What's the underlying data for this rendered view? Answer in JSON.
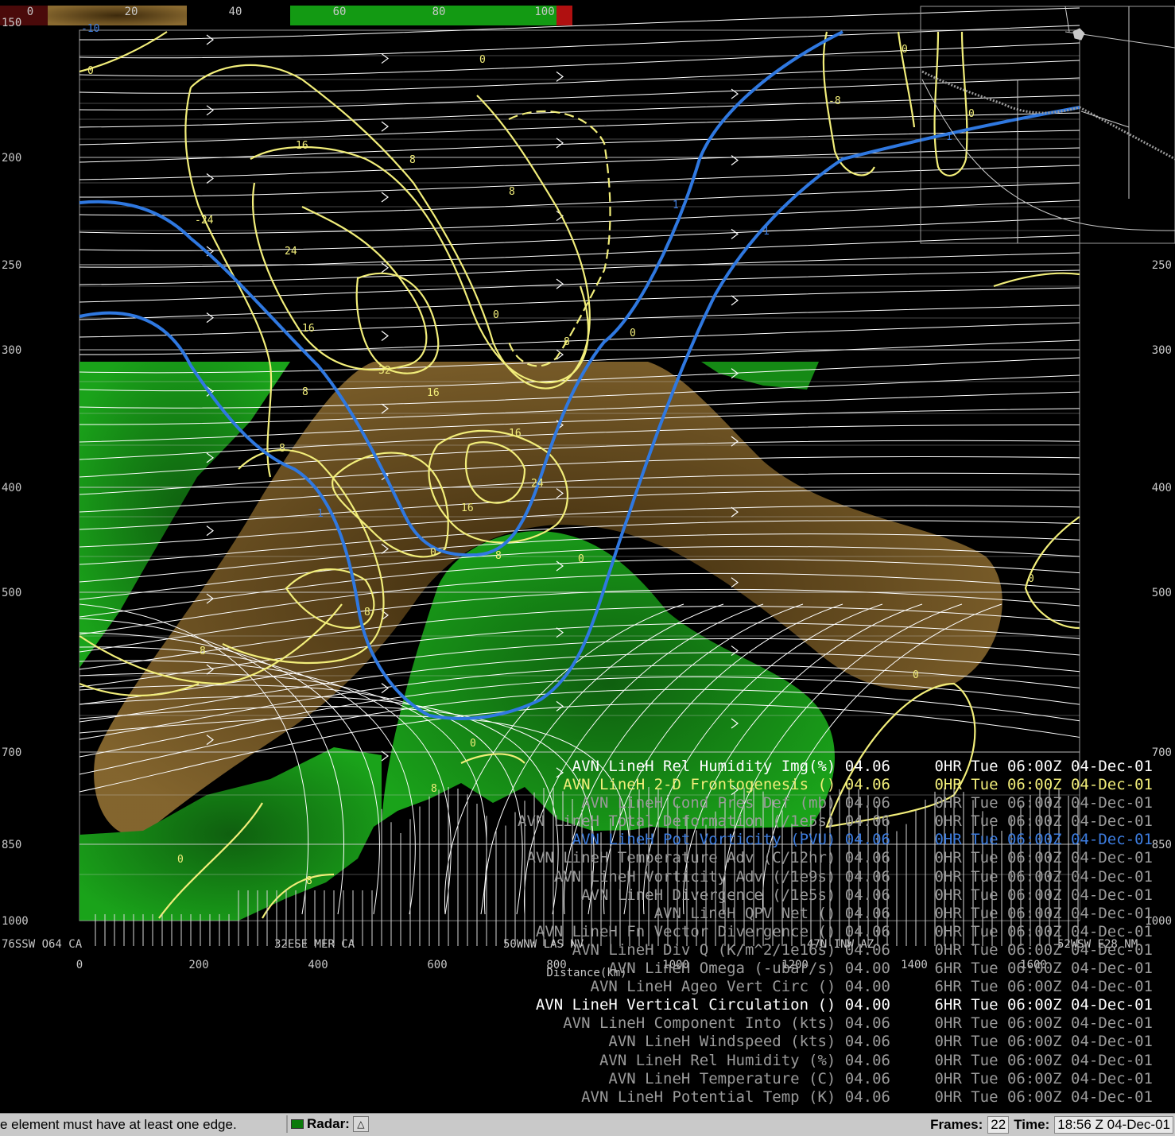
{
  "colorbar": {
    "ticks": [
      "0",
      "20",
      "40",
      "60",
      "80",
      "100"
    ]
  },
  "pressure_axis": {
    "left": [
      "150",
      "200",
      "250",
      "300",
      "400",
      "500",
      "700",
      "850",
      "1000"
    ],
    "right": [
      "250",
      "300",
      "400",
      "500",
      "700",
      "850",
      "1000"
    ]
  },
  "distance_axis": {
    "ticks": [
      "0",
      "200",
      "400",
      "600",
      "800",
      "1000",
      "1200",
      "1400",
      "1600"
    ],
    "label": "Distance(km)"
  },
  "locations": [
    "76SSW O64 CA",
    "32ESE MER CA",
    "50WNW LAS NV",
    "47N INW AZ",
    "52WSW E28 NM"
  ],
  "contour_labels": {
    "yellow": [
      "0",
      "16",
      "8",
      "24",
      "32",
      "16",
      "-24",
      "8",
      "8",
      "16",
      "24",
      "16",
      "8",
      "0",
      "0",
      "8",
      "8",
      "0",
      "0",
      "8",
      "-8",
      "0",
      "0",
      "0",
      "0",
      "0",
      "16",
      "8",
      "0",
      "8",
      "8",
      "0"
    ],
    "blue": [
      "-10",
      "1",
      "1",
      "1",
      "1"
    ]
  },
  "legend": [
    {
      "name": "AVN LineH Rel Humidity Img(%) 04.06",
      "time": "0HR Tue 06:00Z 04-Dec-01",
      "color": "#ffffff"
    },
    {
      "name": "AVN LineH 2-D Frontogenesis () 04.06",
      "time": "0HR Tue 06:00Z 04-Dec-01",
      "color": "#f2ee7a"
    },
    {
      "name": "AVN LineH Cond Pres Def (mb) 04.06",
      "time": "0HR Tue 06:00Z 04-Dec-01",
      "color": "#9a9a9a"
    },
    {
      "name": "AVN LineH Total Deformation (/1e5s) 04.06",
      "time": "0HR Tue 06:00Z 04-Dec-01",
      "color": "#9a9a9a"
    },
    {
      "name": "AVN LineH Pot Vorticity (PVU) 04.06",
      "time": "0HR Tue 06:00Z 04-Dec-01",
      "color": "#3d7de0"
    },
    {
      "name": "AVN LineH Temperature Adv (C/12hr) 04.06",
      "time": "0HR Tue 06:00Z 04-Dec-01",
      "color": "#9a9a9a"
    },
    {
      "name": "AVN LineH Vorticity Adv (/1e9s) 04.06",
      "time": "0HR Tue 06:00Z 04-Dec-01",
      "color": "#9a9a9a"
    },
    {
      "name": "AVN LineH Divergence (/1e5s) 04.06",
      "time": "0HR Tue 06:00Z 04-Dec-01",
      "color": "#9a9a9a"
    },
    {
      "name": "AVN LineH QPV Net () 04.06",
      "time": "0HR Tue 06:00Z 04-Dec-01",
      "color": "#9a9a9a"
    },
    {
      "name": "AVN LineH Fn Vector Divergence () 04.06",
      "time": "0HR Tue 06:00Z 04-Dec-01",
      "color": "#9a9a9a"
    },
    {
      "name": "AVN LineH Div Q (K/m^2/1e16s) 04.06",
      "time": "0HR Tue 06:00Z 04-Dec-01",
      "color": "#9a9a9a"
    },
    {
      "name": "AVN LineH Omega (-ubar/s) 04.00",
      "time": "6HR Tue 06:00Z 04-Dec-01",
      "color": "#9a9a9a"
    },
    {
      "name": "AVN LineH Ageo Vert Circ () 04.00",
      "time": "6HR Tue 06:00Z 04-Dec-01",
      "color": "#9a9a9a"
    },
    {
      "name": "AVN LineH Vertical Circulation () 04.00",
      "time": "6HR Tue 06:00Z 04-Dec-01",
      "color": "#ffffff"
    },
    {
      "name": "AVN LineH Component Into (kts) 04.06",
      "time": "0HR Tue 06:00Z 04-Dec-01",
      "color": "#9a9a9a"
    },
    {
      "name": "AVN LineH Windspeed (kts) 04.06",
      "time": "0HR Tue 06:00Z 04-Dec-01",
      "color": "#9a9a9a"
    },
    {
      "name": "AVN LineH Rel Humidity (%) 04.06",
      "time": "0HR Tue 06:00Z 04-Dec-01",
      "color": "#9a9a9a"
    },
    {
      "name": "AVN LineH Temperature (C) 04.06",
      "time": "0HR Tue 06:00Z 04-Dec-01",
      "color": "#9a9a9a"
    },
    {
      "name": "AVN LineH Potential Temp (K) 04.06",
      "time": "0HR Tue 06:00Z 04-Dec-01",
      "color": "#9a9a9a"
    }
  ],
  "status": {
    "message": "e element must have at least one edge.",
    "radar_label": "Radar:",
    "radar_button": "△",
    "frames_label": "Frames:",
    "frames_value": "22",
    "time_label": "Time:",
    "time_value": "18:56 Z 04-Dec-01"
  }
}
